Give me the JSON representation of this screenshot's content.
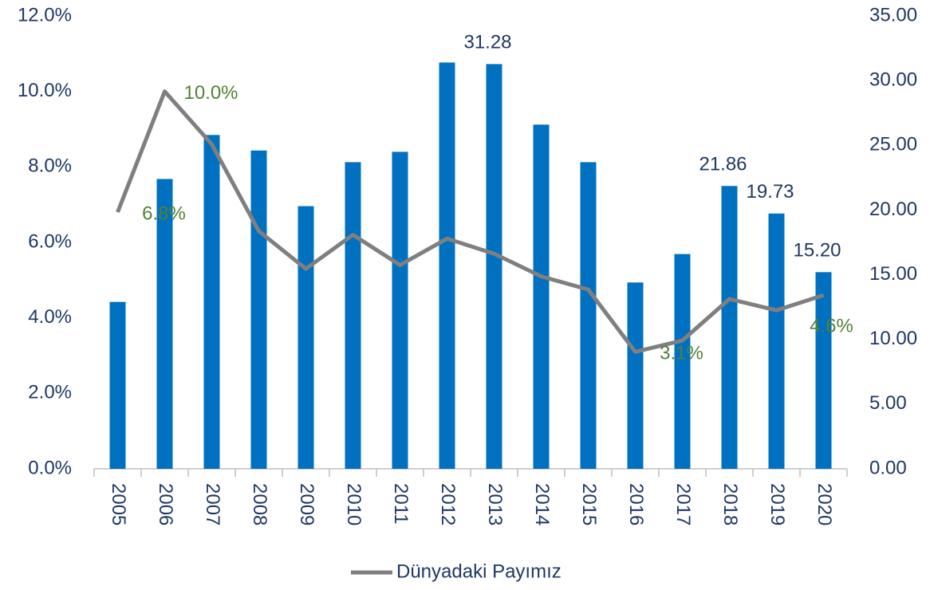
{
  "chart_data": {
    "type": "bar-line",
    "categories": [
      "2005",
      "2006",
      "2007",
      "2008",
      "2009",
      "2010",
      "2011",
      "2012",
      "2013",
      "2014",
      "2015",
      "2016",
      "2017",
      "2018",
      "2019",
      "2020"
    ],
    "series": [
      {
        "type": "bar",
        "axis": "y2",
        "color": "#0070c0",
        "values": [
          12.9,
          22.4,
          25.8,
          24.6,
          20.3,
          23.7,
          24.5,
          31.4,
          31.28,
          26.6,
          23.7,
          14.4,
          16.6,
          21.86,
          19.73,
          15.2
        ],
        "value_labels": [
          null,
          null,
          null,
          null,
          null,
          null,
          null,
          null,
          "31.28",
          null,
          null,
          null,
          null,
          "21.86",
          "19.73",
          "15.20"
        ]
      },
      {
        "type": "line",
        "name": "Dünyadaki Payımız",
        "color": "#7f7f7f",
        "values": [
          6.8,
          10.0,
          8.6,
          6.3,
          5.3,
          6.2,
          5.4,
          6.1,
          5.7,
          5.1,
          4.75,
          3.1,
          3.4,
          4.5,
          4.2,
          4.6
        ],
        "value_labels": [
          "6.8%",
          "10.0%",
          null,
          null,
          null,
          null,
          null,
          null,
          null,
          null,
          null,
          "3.1%",
          null,
          null,
          null,
          "4.6%"
        ]
      }
    ],
    "ylim": [
      0,
      12
    ],
    "yticks": [
      {
        "value": 0,
        "label": "0.0%"
      },
      {
        "value": 2,
        "label": "2.0%"
      },
      {
        "value": 4,
        "label": "4.0%"
      },
      {
        "value": 6,
        "label": "6.0%"
      },
      {
        "value": 8,
        "label": "8.0%"
      },
      {
        "value": 10,
        "label": "10.0%"
      },
      {
        "value": 12,
        "label": "12.0%"
      }
    ],
    "y2lim": [
      0,
      35
    ],
    "y2ticks": [
      {
        "value": 0,
        "label": "0.00"
      },
      {
        "value": 5,
        "label": "5.00"
      },
      {
        "value": 10,
        "label": "10.00"
      },
      {
        "value": 15,
        "label": "15.00"
      },
      {
        "value": 20,
        "label": "20.00"
      },
      {
        "value": 25,
        "label": "25.00"
      },
      {
        "value": 30,
        "label": "30.00"
      },
      {
        "value": 35,
        "label": "35.00"
      }
    ],
    "legend": "bottom"
  }
}
